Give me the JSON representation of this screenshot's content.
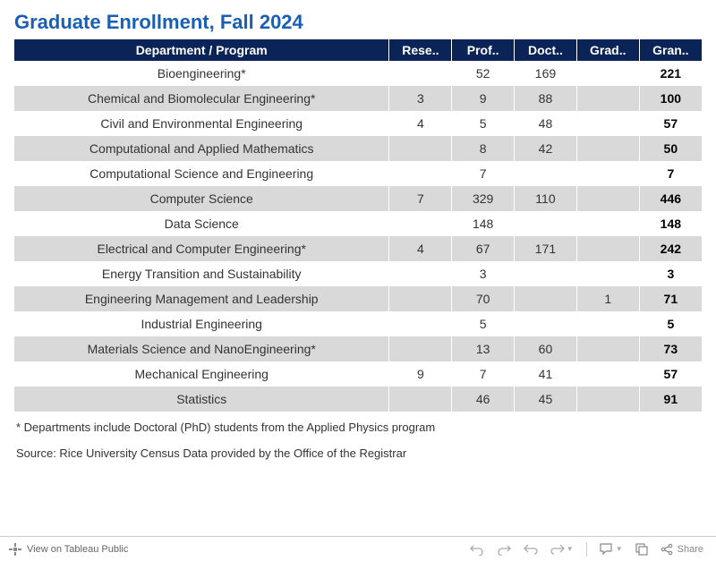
{
  "title": "Graduate Enrollment, Fall 2024",
  "colors": {
    "title_color": "#1a5fb4",
    "header_bg": "#0a2458",
    "header_text": "#ffffff",
    "row_alt_bg": "#d9d9d9",
    "text_color": "#333333"
  },
  "table": {
    "columns": [
      "Department / Program",
      "Rese..",
      "Prof..",
      "Doct..",
      "Grad..",
      "Gran.."
    ],
    "rows": [
      {
        "dept": "Bioengineering*",
        "rese": "",
        "prof": "52",
        "doct": "169",
        "grad": "",
        "gran": "221",
        "alt": false
      },
      {
        "dept": "Chemical and Biomolecular Engineering*",
        "rese": "3",
        "prof": "9",
        "doct": "88",
        "grad": "",
        "gran": "100",
        "alt": true
      },
      {
        "dept": "Civil and Environmental Engineering",
        "rese": "4",
        "prof": "5",
        "doct": "48",
        "grad": "",
        "gran": "57",
        "alt": false
      },
      {
        "dept": "Computational and Applied Mathematics",
        "rese": "",
        "prof": "8",
        "doct": "42",
        "grad": "",
        "gran": "50",
        "alt": true
      },
      {
        "dept": "Computational Science and Engineering",
        "rese": "",
        "prof": "7",
        "doct": "",
        "grad": "",
        "gran": "7",
        "alt": false
      },
      {
        "dept": "Computer Science",
        "rese": "7",
        "prof": "329",
        "doct": "110",
        "grad": "",
        "gran": "446",
        "alt": true
      },
      {
        "dept": "Data Science",
        "rese": "",
        "prof": "148",
        "doct": "",
        "grad": "",
        "gran": "148",
        "alt": false
      },
      {
        "dept": "Electrical and Computer Engineering*",
        "rese": "4",
        "prof": "67",
        "doct": "171",
        "grad": "",
        "gran": "242",
        "alt": true
      },
      {
        "dept": "Energy Transition and Sustainability",
        "rese": "",
        "prof": "3",
        "doct": "",
        "grad": "",
        "gran": "3",
        "alt": false
      },
      {
        "dept": "Engineering Management and Leadership",
        "rese": "",
        "prof": "70",
        "doct": "",
        "grad": "1",
        "gran": "71",
        "alt": true
      },
      {
        "dept": "Industrial Engineering",
        "rese": "",
        "prof": "5",
        "doct": "",
        "grad": "",
        "gran": "5",
        "alt": false
      },
      {
        "dept": "Materials Science and NanoEngineering*",
        "rese": "",
        "prof": "13",
        "doct": "60",
        "grad": "",
        "gran": "73",
        "alt": true
      },
      {
        "dept": "Mechanical Engineering",
        "rese": "9",
        "prof": "7",
        "doct": "41",
        "grad": "",
        "gran": "57",
        "alt": false
      },
      {
        "dept": "Statistics",
        "rese": "",
        "prof": "46",
        "doct": "45",
        "grad": "",
        "gran": "91",
        "alt": true
      }
    ]
  },
  "footnote": "* Departments include Doctoral (PhD) students from the Applied Physics program",
  "source": "Source: Rice University Census Data provided by the Office of the Registrar",
  "toolbar": {
    "view_label": "View on Tableau Public",
    "share_label": "Share"
  }
}
